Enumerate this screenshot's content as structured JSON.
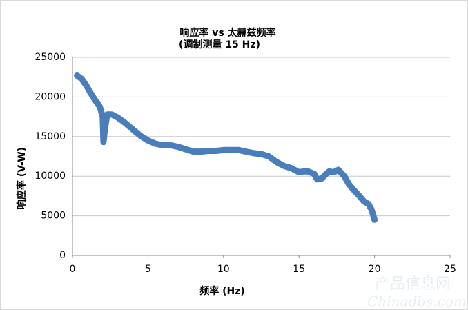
{
  "chart_data": {
    "type": "line",
    "title": "响应率 vs 太赫兹频率",
    "subtitle": "(调制测量 15 Hz)",
    "x_label": "频率 (Hz)",
    "y_label": "响应率 (V-W)",
    "watermark": "产品信息网",
    "watermark_sub": "Chinadbs.com",
    "x": [
      0.3,
      0.6,
      0.9,
      1.2,
      1.5,
      1.8,
      2.0,
      2.05,
      2.15,
      2.3,
      2.6,
      3.0,
      3.5,
      4.0,
      4.5,
      5.0,
      5.5,
      6.0,
      6.5,
      7.0,
      7.5,
      8.0,
      8.5,
      9.0,
      9.5,
      10.0,
      10.5,
      11.0,
      11.5,
      12.0,
      12.5,
      13.0,
      13.5,
      14.0,
      14.5,
      15.0,
      15.3,
      15.6,
      16.0,
      16.2,
      16.5,
      16.8,
      17.0,
      17.3,
      17.6,
      18.0,
      18.3,
      18.6,
      19.0,
      19.3,
      19.6,
      19.8,
      20.0
    ],
    "series": [
      {
        "name": "响应率",
        "color": "#4a7ebb",
        "values": [
          22700,
          22300,
          21500,
          20500,
          19600,
          18800,
          17500,
          14300,
          16000,
          17800,
          17800,
          17400,
          16700,
          15900,
          15100,
          14500,
          14100,
          13900,
          13900,
          13700,
          13400,
          13100,
          13100,
          13200,
          13200,
          13300,
          13300,
          13300,
          13100,
          12900,
          12800,
          12500,
          11800,
          11300,
          11000,
          10500,
          10600,
          10600,
          10300,
          9600,
          9700,
          10300,
          10600,
          10500,
          10800,
          10000,
          9000,
          8300,
          7500,
          6800,
          6500,
          5800,
          4500
        ]
      }
    ],
    "xlim": [
      0,
      25
    ],
    "xticks": [
      0,
      5,
      10,
      15,
      20,
      25
    ],
    "ylim": [
      0,
      25000
    ],
    "yticks": [
      0,
      5000,
      10000,
      15000,
      20000,
      25000
    ],
    "grid": true
  }
}
